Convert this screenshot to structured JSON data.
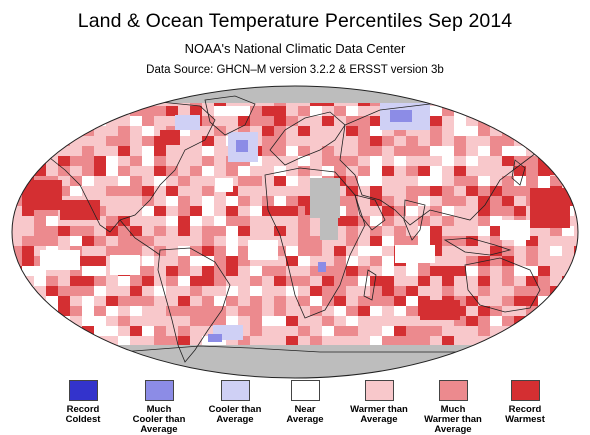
{
  "header": {
    "title": "Land & Ocean Temperature Percentiles Sep 2014",
    "subtitle": "NOAA's National Climatic Data Center",
    "source": "Data Source: GHCN–M version 3.2.2 & ERSST version 3b"
  },
  "legend": [
    {
      "label_1": "Record",
      "label_2": "Coldest",
      "color": "#3333cc"
    },
    {
      "label_1": "Much",
      "label_2": "Cooler than Average",
      "color": "#8c8ce6"
    },
    {
      "label_1": "Cooler than",
      "label_2": "Average",
      "color": "#cfd0f5"
    },
    {
      "label_1": "Near",
      "label_2": "Average",
      "color": "#ffffff"
    },
    {
      "label_1": "Warmer than",
      "label_2": "Average",
      "color": "#f8c8cb"
    },
    {
      "label_1": "Much",
      "label_2": "Warmer than Average",
      "color": "#ec8a8e"
    },
    {
      "label_1": "Record",
      "label_2": "Warmest",
      "color": "#d42f32"
    }
  ],
  "colors": {
    "no_data": "#bdbdbd",
    "coastline": "#222222"
  }
}
